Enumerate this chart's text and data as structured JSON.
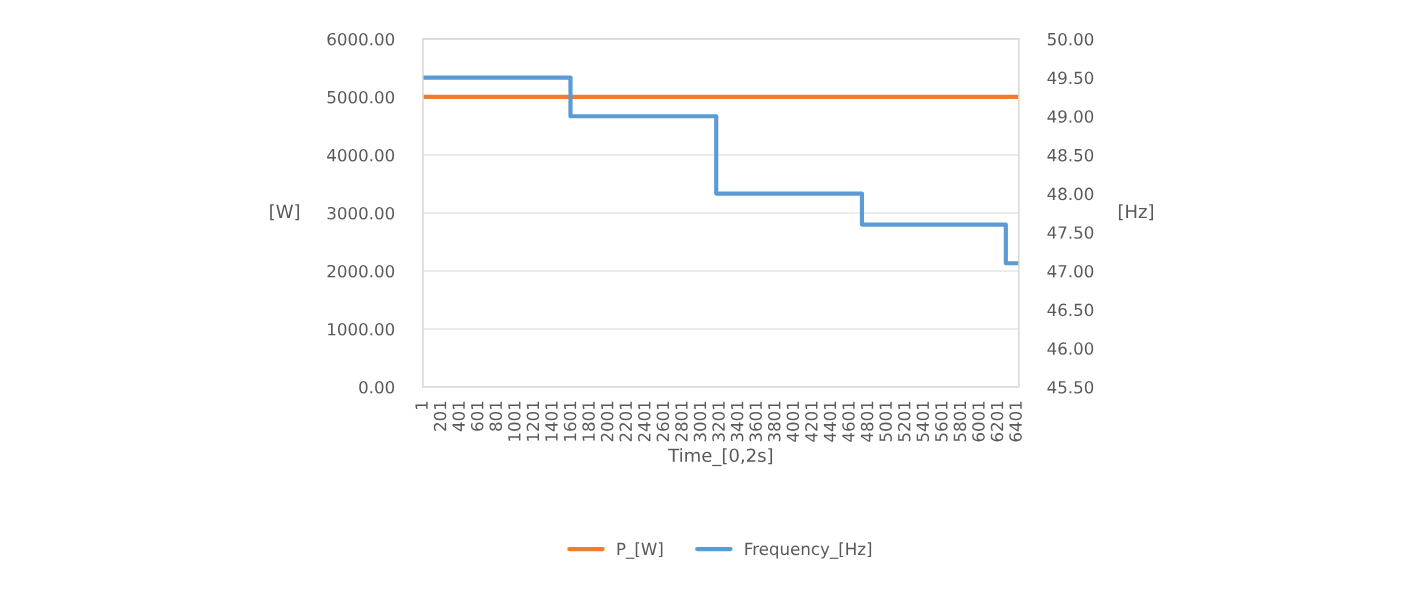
{
  "chart_data": {
    "type": "line",
    "xlabel": "Time_[0,2s]",
    "ylabel": "[W]",
    "y2label": "[Hz]",
    "xlim": [
      1,
      6420
    ],
    "xticks": [
      1,
      201,
      401,
      601,
      801,
      1001,
      1201,
      1401,
      1601,
      1801,
      2001,
      2201,
      2401,
      2601,
      2801,
      3001,
      3201,
      3401,
      3601,
      3801,
      4001,
      4201,
      4401,
      4601,
      4801,
      5001,
      5201,
      5401,
      5601,
      5801,
      6001,
      6201,
      6401
    ],
    "ylim": [
      0,
      6000
    ],
    "yticks": [
      {
        "value": 0,
        "label": "0.00"
      },
      {
        "value": 1000,
        "label": "1000.00"
      },
      {
        "value": 2000,
        "label": "2000.00"
      },
      {
        "value": 3000,
        "label": "3000.00"
      },
      {
        "value": 4000,
        "label": "4000.00"
      },
      {
        "value": 5000,
        "label": "5000.00"
      },
      {
        "value": 6000,
        "label": "6000.00"
      }
    ],
    "y2lim": [
      45.5,
      50
    ],
    "y2ticks": [
      {
        "value": 45.5,
        "label": "45.50"
      },
      {
        "value": 46,
        "label": "46.00"
      },
      {
        "value": 46.5,
        "label": "46.50"
      },
      {
        "value": 47,
        "label": "47.00"
      },
      {
        "value": 47.5,
        "label": "47.50"
      },
      {
        "value": 48,
        "label": "48.00"
      },
      {
        "value": 48.5,
        "label": "48.50"
      },
      {
        "value": 49,
        "label": "49.00"
      },
      {
        "value": 49.5,
        "label": "49.50"
      },
      {
        "value": 50,
        "label": "50.00"
      }
    ],
    "grid": "y",
    "legend": "bottom",
    "series": [
      {
        "name": "P_[W]",
        "color": "#ed7d31",
        "x": [
          1,
          6420
        ],
        "values": [
          5000,
          5000
        ]
      },
      {
        "name": "Frequency_[Hz]",
        "color": "#5b9bd5",
        "type": "step",
        "axis": "y2",
        "x": [
          1,
          1590,
          3160,
          4730,
          6280,
          6420
        ],
        "values": [
          49.5,
          49.0,
          48.0,
          47.6,
          47.1,
          47.1
        ]
      }
    ]
  }
}
